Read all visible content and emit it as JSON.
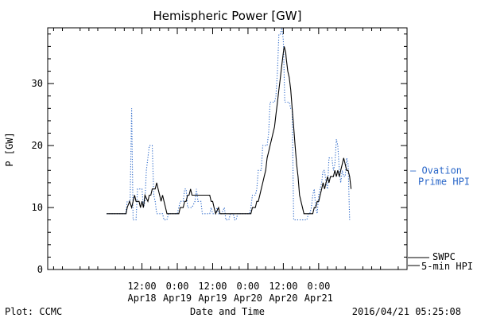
{
  "chart_data": {
    "type": "line",
    "title": "Hemispheric Power [GW]",
    "xlabel": "Date and Time",
    "ylabel": "P [GW]",
    "x_range_hours": [
      -20,
      102
    ],
    "ylim": [
      0,
      39
    ],
    "yticks": [
      0,
      10,
      20,
      30
    ],
    "xticks": [
      {
        "hour": 12,
        "time": "12:00",
        "date": "Apr18"
      },
      {
        "hour": 24,
        "time": "0:00",
        "date": "Apr19"
      },
      {
        "hour": 36,
        "time": "12:00",
        "date": "Apr19"
      },
      {
        "hour": 48,
        "time": "0:00",
        "date": "Apr20"
      },
      {
        "hour": 60,
        "time": "12:00",
        "date": "Apr20"
      },
      {
        "hour": 72,
        "time": "0:00",
        "date": "Apr21"
      }
    ],
    "grid": false,
    "legend_position": "right",
    "series": [
      {
        "name": "SWPC 5-min HPI",
        "legend_line1": "SWPC",
        "legend_line2": "5-min HPI",
        "color": "#000000",
        "style": "solid",
        "points": [
          [
            0,
            9
          ],
          [
            6.6,
            9
          ],
          [
            7,
            10
          ],
          [
            7.8,
            11
          ],
          [
            8.5,
            10
          ],
          [
            9,
            11
          ],
          [
            9.5,
            12
          ],
          [
            10,
            11
          ],
          [
            11,
            11
          ],
          [
            11.5,
            10
          ],
          [
            12,
            11
          ],
          [
            12.5,
            10
          ],
          [
            13,
            12
          ],
          [
            14,
            11
          ],
          [
            14.5,
            12
          ],
          [
            15,
            12
          ],
          [
            15.5,
            13
          ],
          [
            16.5,
            13
          ],
          [
            17,
            14
          ],
          [
            17.5,
            13
          ],
          [
            18,
            12
          ],
          [
            18.5,
            11
          ],
          [
            19,
            12
          ],
          [
            19.5,
            11
          ],
          [
            20,
            10
          ],
          [
            20.5,
            9
          ],
          [
            23,
            9
          ],
          [
            24.5,
            9
          ],
          [
            25,
            10
          ],
          [
            26,
            10
          ],
          [
            26.5,
            11
          ],
          [
            27,
            11
          ],
          [
            27.5,
            12
          ],
          [
            28,
            12
          ],
          [
            28.5,
            13
          ],
          [
            29,
            12
          ],
          [
            35,
            12
          ],
          [
            35.5,
            11
          ],
          [
            36,
            11
          ],
          [
            36.5,
            10
          ],
          [
            37,
            9
          ],
          [
            38,
            10
          ],
          [
            38.5,
            9
          ],
          [
            41,
            9
          ],
          [
            42,
            9
          ],
          [
            43,
            9
          ],
          [
            46,
            9
          ],
          [
            48,
            9
          ],
          [
            49,
            9
          ],
          [
            49.5,
            10
          ],
          [
            50.5,
            10
          ],
          [
            51,
            11
          ],
          [
            51.5,
            11
          ],
          [
            52,
            12
          ],
          [
            52.5,
            13
          ],
          [
            53,
            14
          ],
          [
            53.5,
            15
          ],
          [
            54,
            16
          ],
          [
            54.5,
            18
          ],
          [
            55,
            19
          ],
          [
            55.5,
            20
          ],
          [
            56,
            21
          ],
          [
            56.5,
            22
          ],
          [
            57,
            23
          ],
          [
            57.5,
            25
          ],
          [
            58,
            27
          ],
          [
            58.5,
            29
          ],
          [
            59,
            31
          ],
          [
            59.5,
            33
          ],
          [
            60,
            35
          ],
          [
            60.3,
            36
          ],
          [
            60.8,
            35
          ],
          [
            61,
            34
          ],
          [
            61.5,
            32
          ],
          [
            62,
            31
          ],
          [
            62.5,
            29
          ],
          [
            63,
            26
          ],
          [
            63.5,
            23
          ],
          [
            64,
            20
          ],
          [
            64.5,
            17
          ],
          [
            65,
            15
          ],
          [
            65.5,
            12
          ],
          [
            66,
            11
          ],
          [
            66.5,
            10
          ],
          [
            67,
            9
          ],
          [
            68,
            9
          ],
          [
            69,
            9
          ],
          [
            70,
            9
          ],
          [
            70.5,
            10
          ],
          [
            71,
            10
          ],
          [
            71.5,
            11
          ],
          [
            72,
            11
          ],
          [
            72.5,
            12
          ],
          [
            73,
            13
          ],
          [
            73.5,
            14
          ],
          [
            74,
            13
          ],
          [
            74.5,
            14
          ],
          [
            75,
            15
          ],
          [
            75.5,
            14
          ],
          [
            76,
            15
          ],
          [
            76.5,
            15
          ],
          [
            77,
            15
          ],
          [
            77.5,
            16
          ],
          [
            78,
            15
          ],
          [
            78.5,
            16
          ],
          [
            79,
            15
          ],
          [
            79.5,
            16
          ],
          [
            80,
            17
          ],
          [
            80.5,
            18
          ],
          [
            81,
            17
          ],
          [
            81.5,
            16
          ],
          [
            82,
            16
          ],
          [
            82.5,
            15
          ],
          [
            83,
            13
          ]
        ]
      },
      {
        "name": "Ovation Prime HPI",
        "legend_line1": "— Ovation",
        "legend_line2": "Prime HPI",
        "color": "#2a67c9",
        "style": "dotted",
        "points": [
          [
            0,
            9
          ],
          [
            6.5,
            9
          ],
          [
            7,
            11
          ],
          [
            8,
            11
          ],
          [
            8.5,
            26
          ],
          [
            9,
            8
          ],
          [
            10,
            8
          ],
          [
            10.5,
            13
          ],
          [
            12,
            13
          ],
          [
            12.5,
            10
          ],
          [
            13,
            11
          ],
          [
            13.5,
            16
          ],
          [
            14,
            18
          ],
          [
            14.5,
            20
          ],
          [
            15.5,
            20
          ],
          [
            16,
            12
          ],
          [
            16.5,
            11
          ],
          [
            17,
            9
          ],
          [
            19,
            9
          ],
          [
            19.5,
            8
          ],
          [
            20.5,
            8
          ],
          [
            21,
            9
          ],
          [
            22,
            9
          ],
          [
            24,
            9
          ],
          [
            24.5,
            10
          ],
          [
            25,
            11
          ],
          [
            26,
            11
          ],
          [
            26.5,
            13
          ],
          [
            27,
            13
          ],
          [
            27.5,
            10
          ],
          [
            29,
            10
          ],
          [
            30,
            11
          ],
          [
            30.5,
            13
          ],
          [
            31,
            11
          ],
          [
            32,
            11
          ],
          [
            32.5,
            9
          ],
          [
            33,
            9
          ],
          [
            35,
            9
          ],
          [
            35.5,
            10
          ],
          [
            36,
            9
          ],
          [
            37,
            9
          ],
          [
            37.5,
            10
          ],
          [
            38,
            9
          ],
          [
            39,
            9
          ],
          [
            40,
            10
          ],
          [
            40.5,
            8
          ],
          [
            41.5,
            8
          ],
          [
            42,
            9
          ],
          [
            43,
            9
          ],
          [
            43.5,
            8
          ],
          [
            44,
            8
          ],
          [
            44.5,
            9
          ],
          [
            46,
            9
          ],
          [
            47,
            9
          ],
          [
            48,
            9
          ],
          [
            48.5,
            9
          ],
          [
            49,
            10
          ],
          [
            49.5,
            12
          ],
          [
            50.5,
            12
          ],
          [
            51,
            13
          ],
          [
            51.5,
            16
          ],
          [
            52.5,
            16
          ],
          [
            53,
            20
          ],
          [
            54.5,
            20
          ],
          [
            55,
            22
          ],
          [
            55.5,
            27
          ],
          [
            57,
            27
          ],
          [
            57.5,
            28
          ],
          [
            58,
            32
          ],
          [
            58.5,
            38
          ],
          [
            59,
            38
          ],
          [
            59.5,
            39
          ],
          [
            60,
            37
          ],
          [
            60.5,
            27
          ],
          [
            62,
            27
          ],
          [
            62.5,
            26
          ],
          [
            63,
            26
          ],
          [
            63.5,
            8
          ],
          [
            68,
            8
          ],
          [
            68.5,
            9
          ],
          [
            69,
            9
          ],
          [
            69.5,
            10
          ],
          [
            70,
            12
          ],
          [
            70.5,
            13
          ],
          [
            71,
            10
          ],
          [
            71.5,
            9
          ],
          [
            72,
            12
          ],
          [
            72.5,
            13
          ],
          [
            73,
            14
          ],
          [
            73.5,
            16
          ],
          [
            74,
            16
          ],
          [
            74.5,
            14
          ],
          [
            75,
            13
          ],
          [
            75.5,
            18
          ],
          [
            76.5,
            18
          ],
          [
            77,
            16
          ],
          [
            77.5,
            17
          ],
          [
            78,
            21
          ],
          [
            78.5,
            20
          ],
          [
            79,
            16
          ],
          [
            79.5,
            14
          ],
          [
            80,
            16
          ],
          [
            80.5,
            15
          ],
          [
            81,
            15
          ],
          [
            81.5,
            18
          ],
          [
            82,
            17
          ],
          [
            82.5,
            8
          ]
        ]
      }
    ]
  },
  "footer": {
    "left": "Plot: CCMC",
    "center": "Date and Time",
    "right": "2016/04/21 05:25:08"
  }
}
